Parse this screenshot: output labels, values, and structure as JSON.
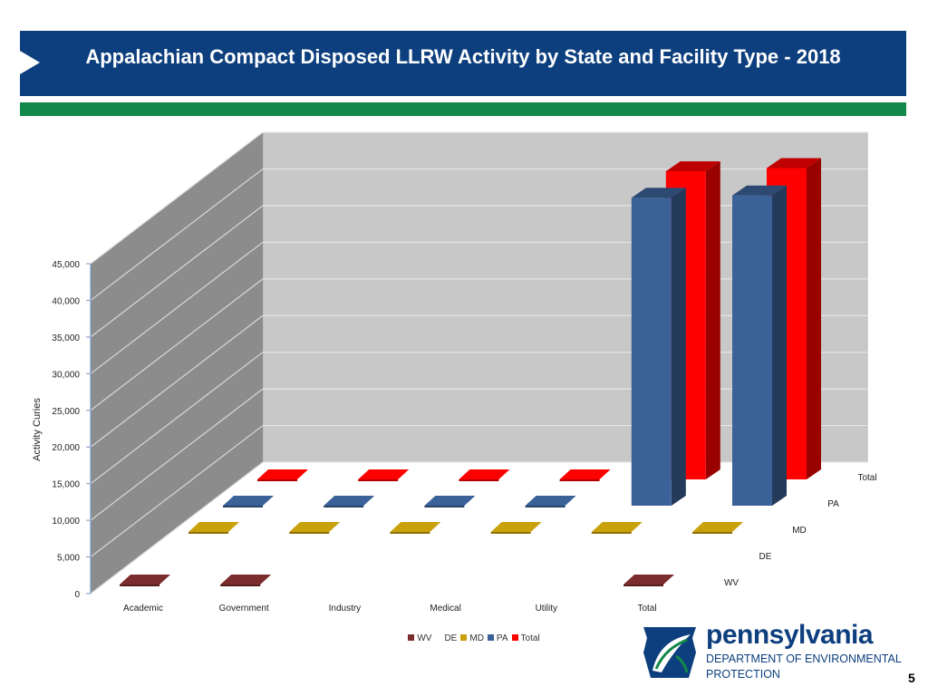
{
  "slide": {
    "title": "Appalachian Compact Disposed LLRW Activity by State and Facility Type - 2018",
    "page_number": "5"
  },
  "logo": {
    "word": "pennsylvania",
    "department": "DEPARTMENT OF ENVIRONMENTAL",
    "protection": "PROTECTION"
  },
  "colors": {
    "header_bg": "#0d3f7e",
    "green_band": "#12884a",
    "WV": "#7b2c2c",
    "DE": "#6b8fd0",
    "MD": "#c9a10b",
    "PA": "#3a6198",
    "Total": "#ff0000"
  },
  "chart_data": {
    "type": "bar",
    "subtype": "3d-clustered-depth",
    "ylabel": "Activity Curies",
    "ylim": [
      0,
      45000
    ],
    "y_ticks": [
      "0",
      "5,000",
      "10,000",
      "15,000",
      "20,000",
      "25,000",
      "30,000",
      "35,000",
      "40,000",
      "45,000"
    ],
    "categories": [
      "Academic",
      "Government",
      "Industry",
      "Medical",
      "Utility",
      "Total"
    ],
    "series": [
      {
        "name": "WV",
        "values": [
          5,
          10,
          null,
          null,
          null,
          15
        ]
      },
      {
        "name": "DE",
        "values": [
          null,
          null,
          null,
          null,
          null,
          null
        ]
      },
      {
        "name": "MD",
        "values": [
          20,
          30,
          25,
          15,
          40,
          130
        ]
      },
      {
        "name": "PA",
        "values": [
          50,
          80,
          120,
          60,
          42000,
          42310
        ]
      },
      {
        "name": "Total",
        "values": [
          75,
          120,
          145,
          75,
          42040,
          42470
        ]
      }
    ],
    "depth_axis_labels": [
      "WV",
      "DE",
      "MD",
      "PA",
      "Total"
    ],
    "legend": [
      "WV",
      "DE",
      "MD",
      "PA",
      "Total"
    ],
    "legend_position": "bottom",
    "grid": true
  }
}
